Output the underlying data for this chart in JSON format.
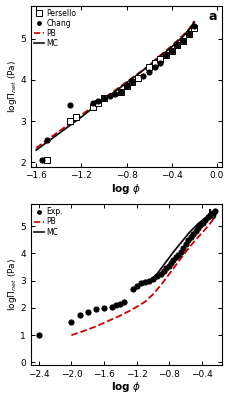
{
  "panel_a": {
    "xlim": [
      -1.65,
      0.05
    ],
    "ylim": [
      1.9,
      5.8
    ],
    "xticks": [
      -1.6,
      -1.2,
      -0.8,
      -0.4,
      0.0
    ],
    "yticks": [
      2,
      3,
      4,
      5
    ],
    "persello_x": [
      -1.5,
      -1.3,
      -1.25,
      -1.1,
      -1.05,
      -1.0,
      -0.85,
      -0.8,
      -0.75,
      -0.7,
      -0.6,
      -0.55,
      -0.5,
      -0.45,
      -0.4,
      -0.35,
      -0.3,
      -0.25,
      -0.2
    ],
    "persello_y": [
      2.05,
      3.0,
      3.1,
      3.35,
      3.45,
      3.55,
      3.7,
      3.85,
      3.95,
      4.05,
      4.3,
      4.4,
      4.5,
      4.6,
      4.7,
      4.85,
      4.95,
      5.1,
      5.25
    ],
    "chang_x": [
      -1.55,
      -1.5,
      -1.3,
      -1.1,
      -1.05,
      -1.0,
      -0.95,
      -0.9,
      -0.85,
      -0.8,
      -0.75,
      -0.65,
      -0.6,
      -0.55,
      -0.5,
      -0.45,
      -0.4,
      -0.35,
      -0.3,
      -0.25,
      -0.2
    ],
    "chang_y": [
      2.05,
      2.55,
      3.4,
      3.45,
      3.5,
      3.55,
      3.6,
      3.65,
      3.7,
      3.85,
      3.95,
      4.1,
      4.2,
      4.3,
      4.4,
      4.6,
      4.7,
      4.85,
      4.95,
      5.1,
      5.3
    ],
    "pb_x": [
      -1.6,
      -1.5,
      -1.4,
      -1.3,
      -1.2,
      -1.1,
      -1.0,
      -0.9,
      -0.8,
      -0.7,
      -0.6,
      -0.5,
      -0.4,
      -0.3,
      -0.25,
      -0.2
    ],
    "pb_y": [
      2.35,
      2.55,
      2.75,
      2.95,
      3.15,
      3.35,
      3.55,
      3.75,
      3.95,
      4.15,
      4.35,
      4.6,
      4.82,
      5.08,
      5.22,
      5.42
    ],
    "mc_x": [
      -1.6,
      -1.5,
      -1.4,
      -1.3,
      -1.2,
      -1.1,
      -1.0,
      -0.9,
      -0.8,
      -0.7,
      -0.6,
      -0.5,
      -0.4,
      -0.3,
      -0.25,
      -0.2
    ],
    "mc_y": [
      2.3,
      2.5,
      2.7,
      2.9,
      3.1,
      3.32,
      3.52,
      3.72,
      3.93,
      4.13,
      4.35,
      4.57,
      4.8,
      5.05,
      5.2,
      5.4
    ]
  },
  "panel_b": {
    "xlim": [
      -2.5,
      -0.15
    ],
    "ylim": [
      -0.1,
      5.8
    ],
    "xticks": [
      -2.4,
      -2.0,
      -1.6,
      -1.2,
      -0.8,
      -0.4
    ],
    "yticks": [
      0,
      1,
      2,
      3,
      4,
      5
    ],
    "exp_x": [
      -2.4,
      -2.0,
      -1.9,
      -1.8,
      -1.7,
      -1.6,
      -1.5,
      -1.45,
      -1.4,
      -1.35,
      -1.25,
      -1.2,
      -1.15,
      -1.1,
      -1.05,
      -1.0,
      -0.95,
      -0.9,
      -0.87,
      -0.84,
      -0.81,
      -0.78,
      -0.75,
      -0.72,
      -0.69,
      -0.66,
      -0.63,
      -0.6,
      -0.57,
      -0.54,
      -0.51,
      -0.48,
      -0.45,
      -0.42,
      -0.39,
      -0.36,
      -0.33,
      -0.3,
      -0.27,
      -0.24
    ],
    "exp_y": [
      1.0,
      1.5,
      1.75,
      1.85,
      1.95,
      2.0,
      2.05,
      2.1,
      2.15,
      2.2,
      2.7,
      2.8,
      2.9,
      2.95,
      3.0,
      3.05,
      3.15,
      3.25,
      3.35,
      3.45,
      3.55,
      3.65,
      3.75,
      3.85,
      3.95,
      4.05,
      4.2,
      4.35,
      4.48,
      4.6,
      4.72,
      4.82,
      4.92,
      5.02,
      5.12,
      5.22,
      5.32,
      5.4,
      5.48,
      5.55
    ],
    "pb_x": [
      -2.0,
      -1.85,
      -1.7,
      -1.55,
      -1.4,
      -1.25,
      -1.1,
      -1.0,
      -0.9,
      -0.8,
      -0.7,
      -0.6,
      -0.5,
      -0.4,
      -0.35,
      -0.3,
      -0.25
    ],
    "pb_y": [
      1.0,
      1.15,
      1.32,
      1.52,
      1.72,
      1.95,
      2.22,
      2.5,
      2.85,
      3.25,
      3.65,
      4.05,
      4.42,
      4.75,
      4.92,
      5.1,
      5.3
    ],
    "mc_x": [
      -1.05,
      -0.95,
      -0.85,
      -0.75,
      -0.65,
      -0.55,
      -0.45,
      -0.35,
      -0.27
    ],
    "mc_y": [
      2.95,
      3.25,
      3.65,
      4.05,
      4.42,
      4.78,
      5.08,
      5.32,
      5.52
    ]
  },
  "colors": {
    "pb": "#cc0000",
    "mc": "#111111"
  }
}
